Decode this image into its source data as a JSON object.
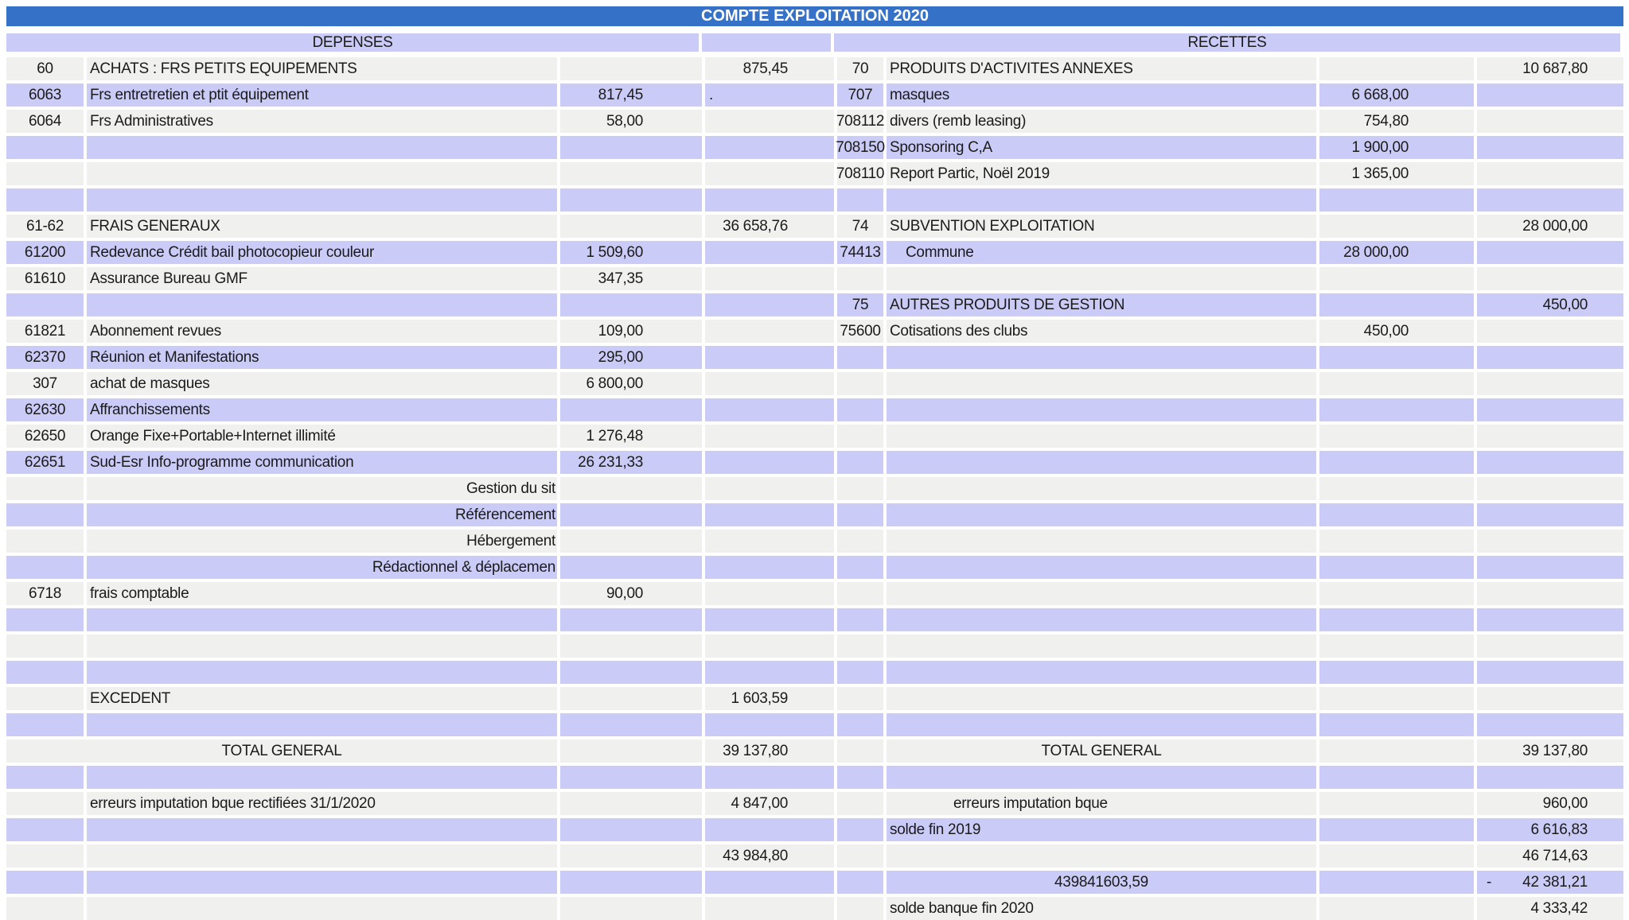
{
  "title": "COMPTE EXPLOITATION 2020",
  "colors": {
    "title_bg": "#3571c6",
    "band_lavender": "#cbcbf8",
    "band_gray": "#f0f0ef",
    "text": "#1b1b1b",
    "title_text": "#ffffff"
  },
  "headers": {
    "depenses": "DEPENSES",
    "recettes": "RECETTES"
  },
  "rows": [
    {
      "shade": "g",
      "left": {
        "code": "60",
        "label": "ACHATS : FRS PETITS EQUIPEMENTS",
        "amount": "",
        "total": "875,45"
      },
      "right": {
        "code": "70",
        "label": "PRODUITS D'ACTIVITES ANNEXES",
        "amount": "",
        "total": "10 687,80"
      }
    },
    {
      "shade": "l",
      "left": {
        "code": "6063",
        "label": "Frs entretretien et ptit équipement",
        "amount": "817,45",
        "total": ".",
        "total_align": "left"
      },
      "right": {
        "code": "707",
        "label": "masques",
        "amount": "6 668,00",
        "total": ""
      }
    },
    {
      "shade": "g",
      "left": {
        "code": "6064",
        "label": "Frs Administratives",
        "amount": "58,00",
        "total": ""
      },
      "right": {
        "code": "708112",
        "label": "divers (remb leasing)",
        "amount": "754,80",
        "total": ""
      }
    },
    {
      "shade": "l",
      "left": {
        "code": "",
        "label": "",
        "amount": "",
        "total": ""
      },
      "right": {
        "code": "708150",
        "label": "Sponsoring C,A",
        "amount": "1 900,00",
        "total": ""
      }
    },
    {
      "shade": "g",
      "left": {
        "code": "",
        "label": "",
        "amount": "",
        "total": ""
      },
      "right": {
        "code": "708110",
        "label": "Report Partic, Noël 2019",
        "amount": "1 365,00",
        "total": ""
      }
    },
    {
      "shade": "l",
      "left": {
        "code": "",
        "label": "",
        "amount": "",
        "total": ""
      },
      "right": {
        "code": "",
        "label": "",
        "amount": "",
        "total": ""
      }
    },
    {
      "shade": "g",
      "left": {
        "code": "61-62",
        "label": "FRAIS GENERAUX",
        "amount": "",
        "total": "36 658,76"
      },
      "right": {
        "code": "74",
        "label": "SUBVENTION EXPLOITATION",
        "amount": "",
        "total": "28 000,00"
      }
    },
    {
      "shade": "l",
      "left": {
        "code": "61200",
        "label": "Redevance Crédit bail photocopieur couleur",
        "amount": "1 509,60",
        "total": ""
      },
      "right": {
        "code": "74413",
        "label": "Commune",
        "indent": 24,
        "amount": "28 000,00",
        "total": ""
      }
    },
    {
      "shade": "g",
      "left": {
        "code": "61610",
        "label": "Assurance Bureau GMF",
        "amount": "347,35",
        "total": ""
      },
      "right": {
        "code": "",
        "label": "",
        "amount": "",
        "total": ""
      }
    },
    {
      "shade": "l",
      "left": {
        "code": "",
        "label": "",
        "amount": "",
        "total": ""
      },
      "right": {
        "code": "75",
        "label": "AUTRES PRODUITS DE GESTION",
        "amount": "",
        "total": "450,00"
      }
    },
    {
      "shade": "g",
      "left": {
        "code": "61821",
        "label": "Abonnement revues",
        "amount": "109,00",
        "total": ""
      },
      "right": {
        "code": "75600",
        "label": "Cotisations des clubs",
        "amount": "450,00",
        "total": ""
      }
    },
    {
      "shade": "l",
      "left": {
        "code": "62370",
        "label": "Réunion et Manifestations",
        "amount": "295,00",
        "total": ""
      },
      "right": {
        "code": "",
        "label": "",
        "amount": "",
        "total": ""
      }
    },
    {
      "shade": "g",
      "left": {
        "code": "307",
        "label": "achat de masques",
        "amount": "6 800,00",
        "total": ""
      },
      "right": {
        "code": "",
        "label": "",
        "amount": "",
        "total": ""
      }
    },
    {
      "shade": "l",
      "left": {
        "code": "62630",
        "label": "Affranchissements",
        "amount": "",
        "total": ""
      },
      "right": {
        "code": "",
        "label": "",
        "amount": "",
        "total": ""
      }
    },
    {
      "shade": "g",
      "left": {
        "code": "62650",
        "label": "Orange Fixe+Portable+Internet illimité",
        "amount": "1 276,48",
        "total": ""
      },
      "right": {
        "code": "",
        "label": "",
        "amount": "",
        "total": ""
      }
    },
    {
      "shade": "l",
      "left": {
        "code": "62651",
        "label": "Sud-Esr Info-programme communication",
        "amount": "26 231,33",
        "total": ""
      },
      "right": {
        "code": "",
        "label": "",
        "amount": "",
        "total": ""
      }
    },
    {
      "shade": "g",
      "left": {
        "code": "",
        "label": "Gestion du sit",
        "label_align": "right",
        "amount": "",
        "total": ""
      },
      "right": {
        "code": "",
        "label": "",
        "amount": "",
        "total": ""
      }
    },
    {
      "shade": "l",
      "left": {
        "code": "",
        "label": "Référencement",
        "label_align": "right",
        "amount": "",
        "total": ""
      },
      "right": {
        "code": "",
        "label": "",
        "amount": "",
        "total": ""
      }
    },
    {
      "shade": "g",
      "left": {
        "code": "",
        "label": "Hébergement",
        "label_align": "right",
        "amount": "",
        "total": ""
      },
      "right": {
        "code": "",
        "label": "",
        "amount": "",
        "total": ""
      }
    },
    {
      "shade": "l",
      "left": {
        "code": "",
        "label": "Rédactionnel & déplacemen",
        "label_align": "right",
        "amount": "",
        "total": ""
      },
      "right": {
        "code": "",
        "label": "",
        "amount": "",
        "total": ""
      }
    },
    {
      "shade": "g",
      "left": {
        "code": "6718",
        "label": "frais comptable",
        "amount": "90,00",
        "total": ""
      },
      "right": {
        "code": "",
        "label": "",
        "amount": "",
        "total": ""
      }
    },
    {
      "shade": "l",
      "left": {
        "code": "",
        "label": "",
        "amount": "",
        "total": ""
      },
      "right": {
        "code": "",
        "label": "",
        "amount": "",
        "total": ""
      }
    },
    {
      "shade": "g",
      "left": {
        "code": "",
        "label": "",
        "amount": "",
        "total": ""
      },
      "right": {
        "code": "",
        "label": "",
        "amount": "",
        "total": ""
      }
    },
    {
      "shade": "l",
      "left": {
        "code": "",
        "label": "",
        "amount": "",
        "total": ""
      },
      "right": {
        "code": "",
        "label": "",
        "amount": "",
        "total": ""
      }
    },
    {
      "shade": "g",
      "left": {
        "code": "",
        "label": "EXCEDENT",
        "amount": "",
        "total": "1 603,59"
      },
      "right": {
        "code": "",
        "label": "",
        "amount": "",
        "total": ""
      }
    },
    {
      "shade": "l",
      "left": {
        "code": "",
        "label": "",
        "amount": "",
        "total": ""
      },
      "right": {
        "code": "",
        "label": "",
        "amount": "",
        "total": ""
      }
    },
    {
      "shade": "g",
      "left": {
        "code": "",
        "label": "TOTAL GENERAL",
        "merge": true,
        "amount": "",
        "total": "39 137,80"
      },
      "right": {
        "code": "",
        "label": "TOTAL GENERAL",
        "label_align": "center",
        "amount": "",
        "total": "39 137,80"
      }
    },
    {
      "shade": "l",
      "left": {
        "code": "",
        "label": "",
        "amount": "",
        "total": ""
      },
      "right": {
        "code": "",
        "label": "",
        "amount": "",
        "total": ""
      }
    },
    {
      "shade": "g",
      "left": {
        "code": "",
        "label": "erreurs imputation bque rectifiées 31/1/2020",
        "amount": "",
        "total": "4 847,00"
      },
      "right": {
        "code": "",
        "label": "erreurs imputation bque",
        "indent": 84,
        "amount": "",
        "total": "960,00"
      }
    },
    {
      "shade": "l",
      "left": {
        "code": "",
        "label": "",
        "amount": "",
        "total": ""
      },
      "right": {
        "code": "",
        "label": "solde fin 2019",
        "amount": "",
        "total": "6 616,83"
      }
    },
    {
      "shade": "g",
      "left": {
        "code": "",
        "label": "",
        "amount": "",
        "total": "43 984,80"
      },
      "right": {
        "code": "",
        "label": "",
        "amount": "",
        "total": "46 714,63"
      }
    },
    {
      "shade": "l",
      "left": {
        "code": "",
        "label": "",
        "amount": "",
        "total": ""
      },
      "right": {
        "code": "",
        "label": "439841603,59",
        "label_align": "center",
        "amount": "",
        "total": "- 42 381,21"
      }
    },
    {
      "shade": "g",
      "left": {
        "code": "",
        "label": "",
        "amount": "",
        "total": ""
      },
      "right": {
        "code": "",
        "label": "solde banque fin 2020",
        "amount": "",
        "total": "4 333,42"
      }
    }
  ]
}
